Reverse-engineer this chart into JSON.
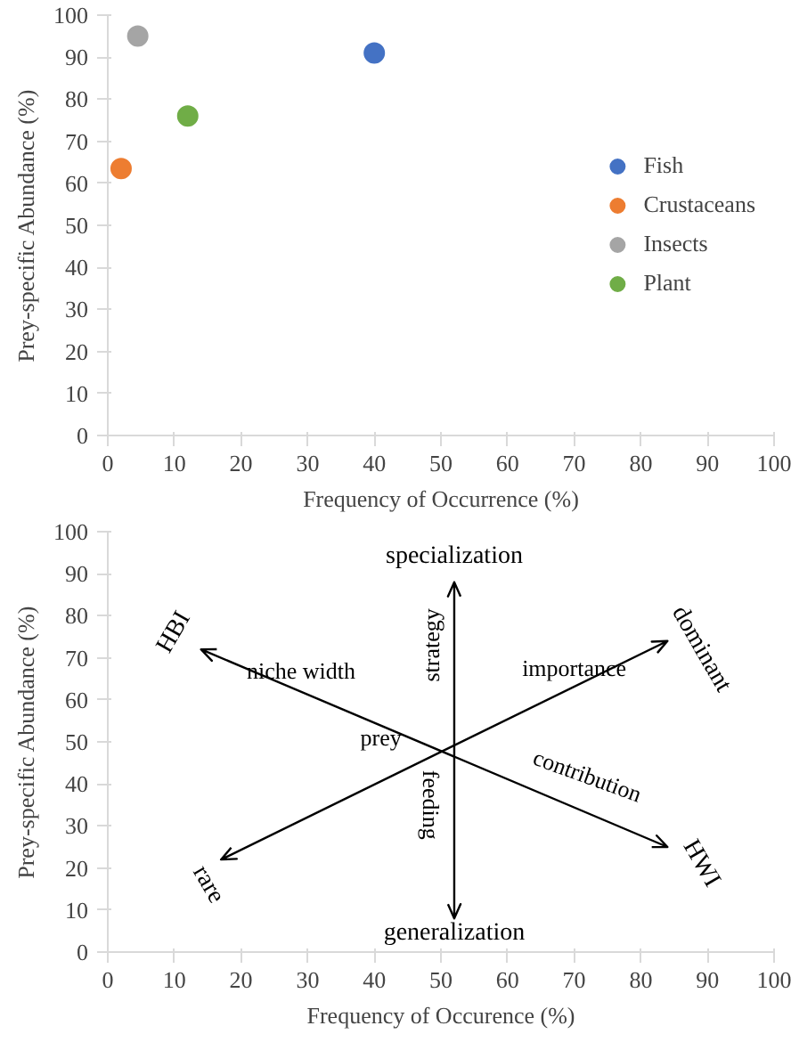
{
  "chart_data": [
    {
      "type": "scatter",
      "xlabel": "Frequency of Occurrence (%)",
      "ylabel": "Prey-specific Abundance (%)",
      "xlim": [
        0,
        100
      ],
      "ylim": [
        0,
        100
      ],
      "xticks": [
        0,
        10,
        20,
        30,
        40,
        50,
        60,
        70,
        80,
        90,
        100
      ],
      "yticks": [
        0,
        10,
        20,
        30,
        40,
        50,
        60,
        70,
        80,
        90,
        100
      ],
      "grid": false,
      "legend": "right",
      "marker": "circle",
      "series": [
        {
          "name": "Fish",
          "color": "#4472c4",
          "x": [
            40
          ],
          "values": [
            91
          ]
        },
        {
          "name": "Crustaceans",
          "color": "#ed7d31",
          "x": [
            2
          ],
          "values": [
            63.5
          ]
        },
        {
          "name": "Insects",
          "color": "#a5a5a5",
          "x": [
            4.5
          ],
          "values": [
            95
          ]
        },
        {
          "name": "Plant",
          "color": "#70ad47",
          "x": [
            12
          ],
          "values": [
            76
          ]
        }
      ]
    },
    {
      "type": "scatter",
      "xlabel": "Frequency of Occurence (%)",
      "ylabel": "Prey-specific Abundance (%)",
      "xlim": [
        0,
        100
      ],
      "ylim": [
        0,
        100
      ],
      "xticks": [
        0,
        10,
        20,
        30,
        40,
        50,
        60,
        70,
        80,
        90,
        100
      ],
      "yticks": [
        0,
        10,
        20,
        30,
        40,
        50,
        60,
        70,
        80,
        90,
        100
      ],
      "annotations": [
        "specialization",
        "generalization",
        "HBI",
        "dominant",
        "rare",
        "HWI",
        "niche width",
        "importance",
        "strategy",
        "feeding",
        "prey",
        "contribution"
      ]
    }
  ]
}
